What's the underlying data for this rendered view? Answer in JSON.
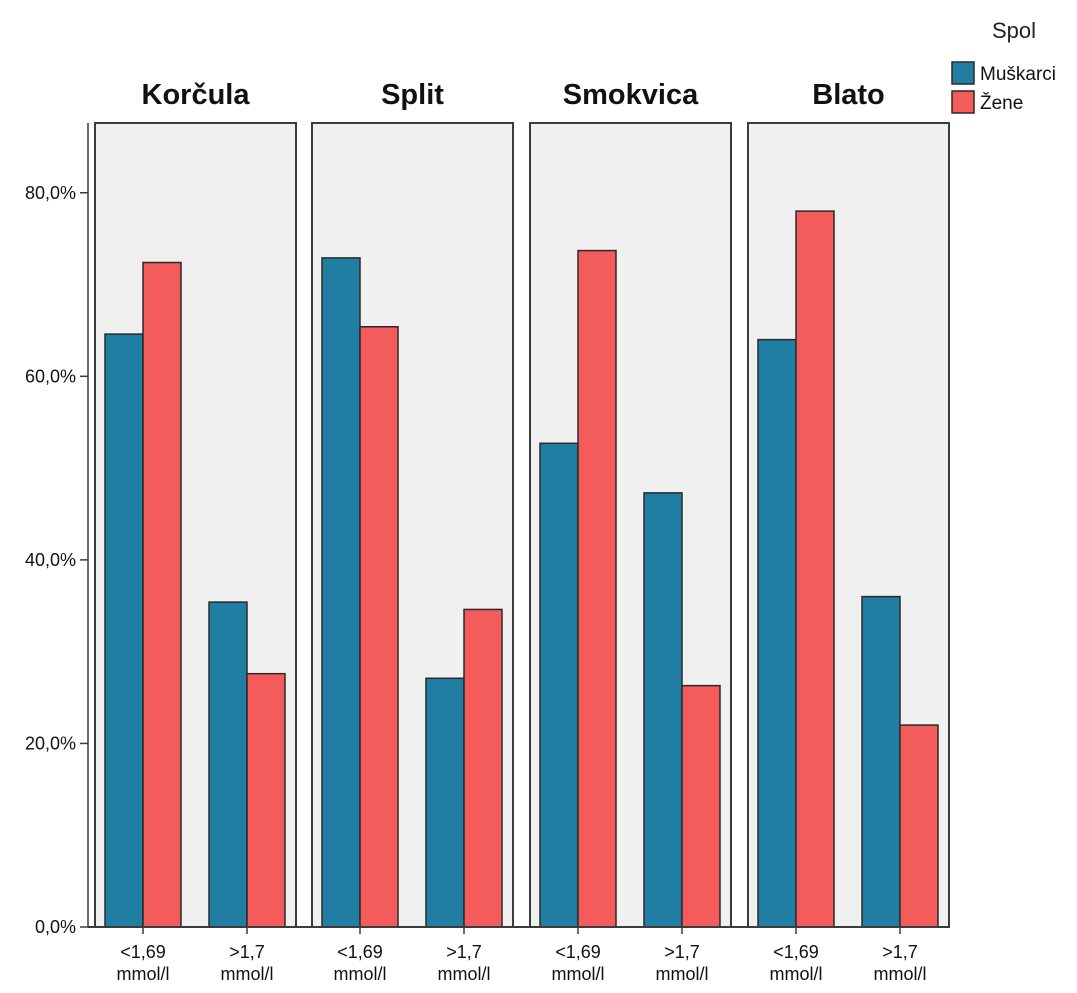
{
  "chart_data": {
    "type": "bar",
    "y_tick_labels": [
      "0,0%",
      "20,0%",
      "40,0%",
      "60,0%",
      "80,0%"
    ],
    "y_ticks": [
      0,
      20,
      40,
      60,
      80
    ],
    "ylim": [
      0,
      87.6
    ],
    "grid": false,
    "legend": {
      "title": "Spol",
      "placement": "top-right",
      "entries": [
        {
          "name": "Muškarci",
          "color": "#1f7ea1"
        },
        {
          "name": "Žene",
          "color": "#f45b5b"
        }
      ]
    },
    "category_lines": [
      [
        "<1,69",
        "mmol/l"
      ],
      [
        ">1,7",
        "mmol/l"
      ]
    ],
    "panels": [
      {
        "title": "Korčula",
        "series": [
          {
            "name": "Muškarci",
            "values": [
              64.6,
              35.4
            ]
          },
          {
            "name": "Žene",
            "values": [
              72.4,
              27.6
            ]
          }
        ]
      },
      {
        "title": "Split",
        "series": [
          {
            "name": "Muškarci",
            "values": [
              72.9,
              27.1
            ]
          },
          {
            "name": "Žene",
            "values": [
              65.4,
              34.6
            ]
          }
        ]
      },
      {
        "title": "Smokvica",
        "series": [
          {
            "name": "Muškarci",
            "values": [
              52.7,
              47.3
            ]
          },
          {
            "name": "Žene",
            "values": [
              73.7,
              26.3
            ]
          }
        ]
      },
      {
        "title": "Blato",
        "series": [
          {
            "name": "Muškarci",
            "values": [
              64.0,
              36.0
            ]
          },
          {
            "name": "Žene",
            "values": [
              78.0,
              22.0
            ]
          }
        ]
      }
    ]
  }
}
